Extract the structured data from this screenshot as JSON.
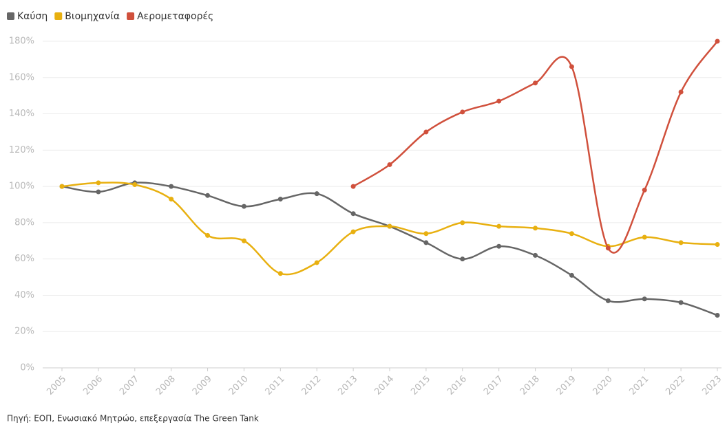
{
  "chart_data": {
    "type": "line",
    "categories": [
      "2005",
      "2006",
      "2007",
      "2008",
      "2009",
      "2010",
      "2011",
      "2012",
      "2013",
      "2014",
      "2015",
      "2016",
      "2017",
      "2018",
      "2019",
      "2020",
      "2021",
      "2022",
      "2023"
    ],
    "series": [
      {
        "name": "Καύση",
        "color": "#666666",
        "values": [
          100,
          97,
          102,
          100,
          95,
          89,
          93,
          96,
          85,
          78,
          69,
          60,
          67,
          62,
          51,
          37,
          38,
          36,
          29
        ]
      },
      {
        "name": "Βιομηχανία",
        "color": "#e8b010",
        "values": [
          100,
          102,
          101,
          93,
          73,
          70,
          52,
          58,
          75,
          78,
          74,
          80,
          78,
          77,
          74,
          67,
          72,
          69,
          68
        ]
      },
      {
        "name": "Αερομεταφορές",
        "color": "#d0503c",
        "values": [
          null,
          null,
          null,
          null,
          null,
          null,
          null,
          null,
          100,
          112,
          130,
          141,
          147,
          157,
          166,
          66,
          98,
          152,
          180
        ]
      }
    ],
    "ylim": [
      0,
      180
    ],
    "yticks": [
      {
        "value": 0,
        "label": "0%"
      },
      {
        "value": 20,
        "label": "20%"
      },
      {
        "value": 40,
        "label": "40%"
      },
      {
        "value": 60,
        "label": "60%"
      },
      {
        "value": 80,
        "label": "80%"
      },
      {
        "value": 100,
        "label": "100%"
      },
      {
        "value": 120,
        "label": "120%"
      },
      {
        "value": 140,
        "label": "140%"
      },
      {
        "value": 160,
        "label": "160%"
      },
      {
        "value": 180,
        "label": "180%"
      }
    ],
    "grid": true,
    "legend": "top-left",
    "source": "Πηγή: ΕΟΠ, Ενωσιακό Μητρώο, επεξεργασία The Green Tank"
  }
}
